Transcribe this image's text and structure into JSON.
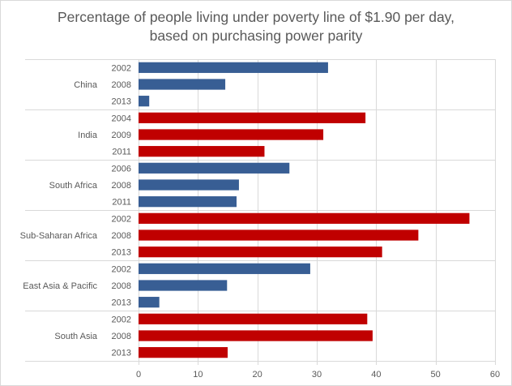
{
  "chart_data": {
    "type": "bar",
    "orientation": "horizontal",
    "title": "Percentage of people living under poverty line of $1.90 per day, based on purchasing power parity",
    "title_lines": [
      "Percentage of people living under poverty line of $1.90 per day,",
      "based on purchasing power parity"
    ],
    "xlabel": "",
    "ylabel": "",
    "xlim": [
      0,
      60
    ],
    "xticks": [
      0,
      10,
      20,
      30,
      40,
      50,
      60
    ],
    "grid": true,
    "legend": "none",
    "groups": [
      {
        "name": "China",
        "color": "#385E94",
        "items": [
          {
            "year": "2002",
            "value": 31.9
          },
          {
            "year": "2008",
            "value": 14.6
          },
          {
            "year": "2013",
            "value": 1.8
          }
        ]
      },
      {
        "name": "India",
        "color": "#C00000",
        "items": [
          {
            "year": "2004",
            "value": 38.2
          },
          {
            "year": "2009",
            "value": 31.1
          },
          {
            "year": "2011",
            "value": 21.2
          }
        ]
      },
      {
        "name": "South Africa",
        "color": "#385E94",
        "items": [
          {
            "year": "2006",
            "value": 25.4
          },
          {
            "year": "2008",
            "value": 16.9
          },
          {
            "year": "2011",
            "value": 16.5
          }
        ]
      },
      {
        "name": "Sub-Saharan Africa",
        "color": "#C00000",
        "items": [
          {
            "year": "2002",
            "value": 55.7
          },
          {
            "year": "2008",
            "value": 47.1
          },
          {
            "year": "2013",
            "value": 41.0
          }
        ]
      },
      {
        "name": "East Asia & Pacific",
        "color": "#385E94",
        "items": [
          {
            "year": "2002",
            "value": 28.9
          },
          {
            "year": "2008",
            "value": 14.9
          },
          {
            "year": "2013",
            "value": 3.5
          }
        ]
      },
      {
        "name": "South Asia",
        "color": "#C00000",
        "items": [
          {
            "year": "2002",
            "value": 38.5
          },
          {
            "year": "2008",
            "value": 39.4
          },
          {
            "year": "2013",
            "value": 15.0
          }
        ]
      }
    ]
  }
}
